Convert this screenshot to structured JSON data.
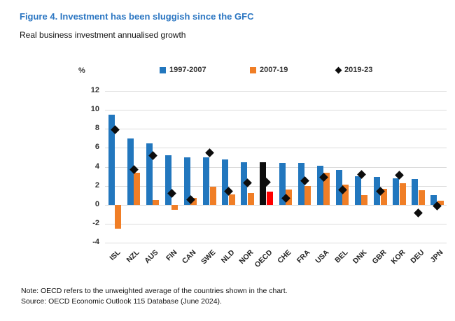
{
  "header": {
    "title": "Figure 4. Investment has been sluggish since the GFC",
    "subtitle": "Real business investment annualised growth",
    "title_color": "#2B76C2"
  },
  "chart_data": {
    "type": "bar",
    "title": "Figure 4. Investment has been sluggish since the GFC",
    "subtitle": "Real business investment annualised growth",
    "y_axis_unit": "%",
    "ylim": [
      -4,
      12
    ],
    "y_ticks": [
      12,
      10,
      8,
      6,
      4,
      2,
      0,
      -2,
      -4
    ],
    "grid": true,
    "legend_position": "top",
    "categories": [
      "ISL",
      "NZL",
      "AUS",
      "FIN",
      "CAN",
      "SWE",
      "NLD",
      "NOR",
      "OECD",
      "CHE",
      "FRA",
      "USA",
      "BEL",
      "DNK",
      "GBR",
      "KOR",
      "DEU",
      "JPN"
    ],
    "series": [
      {
        "name": "1997-2007",
        "type": "bar",
        "color": "#2277BE",
        "values": [
          9.5,
          7.0,
          6.5,
          5.2,
          5.0,
          5.0,
          4.8,
          4.5,
          4.5,
          4.4,
          4.4,
          4.1,
          3.7,
          3.0,
          2.9,
          2.8,
          2.7,
          1.0
        ]
      },
      {
        "name": "2007-19",
        "type": "bar",
        "color": "#F07E26",
        "values": [
          -2.5,
          3.4,
          0.5,
          -0.5,
          0.7,
          1.9,
          1.1,
          1.2,
          1.4,
          1.6,
          2.0,
          3.4,
          2.1,
          1.0,
          1.7,
          2.3,
          1.5,
          0.4
        ]
      },
      {
        "name": "2019-23",
        "type": "scatter-diamond",
        "color": "#0d0d0d",
        "values": [
          7.9,
          3.7,
          5.2,
          1.2,
          0.5,
          5.5,
          1.4,
          2.3,
          2.4,
          0.7,
          2.5,
          2.9,
          1.6,
          3.2,
          1.4,
          3.1,
          -0.9,
          -0.1
        ]
      }
    ],
    "highlight_category": "OECD",
    "highlight_colors": {
      "1997-2007": "#0d0d0d",
      "2007-19": "#FF0000"
    },
    "gridline_color": "#dcdcdc"
  },
  "footer": {
    "note": "Note: OECD refers to the unweighted average of the countries shown in the chart.",
    "source": "Source: OECD Economic Outlook 115 Database (June 2024)."
  }
}
